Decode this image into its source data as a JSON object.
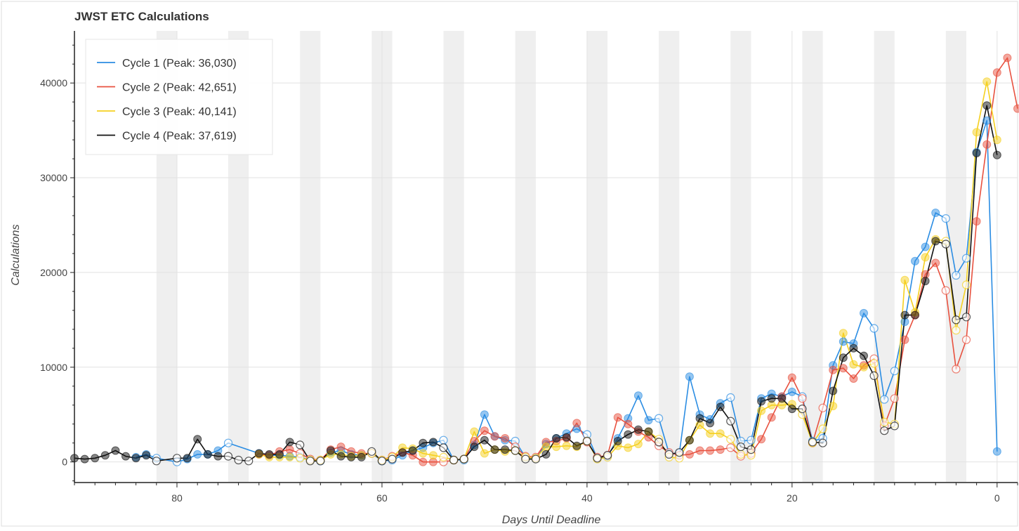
{
  "chart_data": {
    "type": "line",
    "title": "JWST ETC Calculations",
    "xlabel": "Days Until Deadline",
    "ylabel": "Calculations",
    "xlim": [
      90,
      -2
    ],
    "ylim": [
      -2100,
      45500
    ],
    "x_reversed": true,
    "x_ticks": [
      80,
      60,
      40,
      20,
      0
    ],
    "y_ticks": [
      0,
      10000,
      20000,
      30000,
      40000
    ],
    "grid": true,
    "legend_position": "top-left",
    "weekend_bands": [
      [
        82,
        80
      ],
      [
        75,
        73
      ],
      [
        68,
        66
      ],
      [
        61,
        59
      ],
      [
        54,
        52
      ],
      [
        47,
        45
      ],
      [
        40,
        38
      ],
      [
        33,
        31
      ],
      [
        26,
        24
      ],
      [
        19,
        17
      ],
      [
        12,
        10
      ],
      [
        5,
        3
      ]
    ],
    "series": [
      {
        "name": "Cycle 1 (Peak: 36,030)",
        "color": "#2b8de3",
        "points": [
          [
            84,
            500
          ],
          [
            83,
            800
          ],
          [
            82,
            400
          ],
          [
            80,
            0
          ],
          [
            79,
            300
          ],
          [
            78,
            800
          ],
          [
            77,
            800
          ],
          [
            76,
            1200
          ],
          [
            75,
            2000
          ],
          [
            72,
            900
          ],
          [
            71,
            700
          ],
          [
            70,
            700
          ],
          [
            69,
            600
          ],
          [
            68,
            500
          ],
          [
            67,
            200
          ],
          [
            66,
            100
          ],
          [
            65,
            1000
          ],
          [
            64,
            1200
          ],
          [
            63,
            800
          ],
          [
            62,
            700
          ],
          [
            61,
            900
          ],
          [
            60,
            100
          ],
          [
            59,
            200
          ],
          [
            58,
            700
          ],
          [
            57,
            1200
          ],
          [
            56,
            1500
          ],
          [
            55,
            2000
          ],
          [
            54,
            2300
          ],
          [
            53,
            200
          ],
          [
            52,
            200
          ],
          [
            51,
            1800
          ],
          [
            50,
            5000
          ],
          [
            49,
            2700
          ],
          [
            48,
            2300
          ],
          [
            47,
            2200
          ],
          [
            46,
            500
          ],
          [
            45,
            400
          ],
          [
            44,
            1900
          ],
          [
            43,
            2500
          ],
          [
            42,
            3000
          ],
          [
            41,
            3500
          ],
          [
            40,
            2900
          ],
          [
            39,
            400
          ],
          [
            38,
            600
          ],
          [
            37,
            2500
          ],
          [
            36,
            4600
          ],
          [
            35,
            7000
          ],
          [
            34,
            4400
          ],
          [
            33,
            4600
          ],
          [
            32,
            900
          ],
          [
            31,
            900
          ],
          [
            30,
            9000
          ],
          [
            29,
            5000
          ],
          [
            28,
            4500
          ],
          [
            27,
            6200
          ],
          [
            26,
            6800
          ],
          [
            25,
            2200
          ],
          [
            24,
            2300
          ],
          [
            23,
            6700
          ],
          [
            22,
            7200
          ],
          [
            21,
            6900
          ],
          [
            20,
            7400
          ],
          [
            19,
            6900
          ],
          [
            18,
            2200
          ],
          [
            17,
            2500
          ],
          [
            16,
            10200
          ],
          [
            15,
            12700
          ],
          [
            14,
            12500
          ],
          [
            13,
            15700
          ],
          [
            12,
            14100
          ],
          [
            11,
            6600
          ],
          [
            10,
            9600
          ],
          [
            9,
            14800
          ],
          [
            8,
            21200
          ],
          [
            7,
            22700
          ],
          [
            6,
            26300
          ],
          [
            5,
            25700
          ],
          [
            4,
            19700
          ],
          [
            3,
            21500
          ],
          [
            2,
            32700
          ],
          [
            1,
            36030
          ],
          [
            0,
            1100
          ]
        ]
      },
      {
        "name": "Cycle 2 (Peak: 42,651)",
        "color": "#e8513f",
        "points": [
          [
            72,
            800
          ],
          [
            71,
            700
          ],
          [
            70,
            1100
          ],
          [
            69,
            1300
          ],
          [
            68,
            900
          ],
          [
            67,
            300
          ],
          [
            66,
            200
          ],
          [
            65,
            1300
          ],
          [
            64,
            1600
          ],
          [
            63,
            1100
          ],
          [
            62,
            900
          ],
          [
            61,
            900
          ],
          [
            60,
            200
          ],
          [
            59,
            600
          ],
          [
            58,
            1000
          ],
          [
            57,
            700
          ],
          [
            56,
            0
          ],
          [
            55,
            0
          ],
          [
            54,
            0
          ],
          [
            53,
            200
          ],
          [
            52,
            300
          ],
          [
            51,
            2200
          ],
          [
            50,
            3300
          ],
          [
            49,
            2700
          ],
          [
            48,
            2500
          ],
          [
            47,
            1600
          ],
          [
            46,
            600
          ],
          [
            45,
            500
          ],
          [
            44,
            2100
          ],
          [
            43,
            2200
          ],
          [
            42,
            2500
          ],
          [
            41,
            4100
          ],
          [
            40,
            2100
          ],
          [
            39,
            500
          ],
          [
            38,
            700
          ],
          [
            37,
            4700
          ],
          [
            36,
            4000
          ],
          [
            35,
            3200
          ],
          [
            34,
            2600
          ],
          [
            33,
            1700
          ],
          [
            32,
            1000
          ],
          [
            31,
            700
          ],
          [
            30,
            800
          ],
          [
            29,
            1200
          ],
          [
            28,
            1200
          ],
          [
            27,
            1300
          ],
          [
            26,
            1500
          ],
          [
            25,
            600
          ],
          [
            24,
            900
          ],
          [
            23,
            2400
          ],
          [
            22,
            4700
          ],
          [
            21,
            6900
          ],
          [
            20,
            8900
          ],
          [
            19,
            6700
          ],
          [
            18,
            2000
          ],
          [
            17,
            5700
          ],
          [
            16,
            9700
          ],
          [
            15,
            9900
          ],
          [
            14,
            8800
          ],
          [
            13,
            10200
          ],
          [
            12,
            10900
          ],
          [
            11,
            3800
          ],
          [
            10,
            6700
          ],
          [
            9,
            12900
          ],
          [
            8,
            15500
          ],
          [
            7,
            19800
          ],
          [
            6,
            21000
          ],
          [
            5,
            18100
          ],
          [
            4,
            9800
          ],
          [
            3,
            12900
          ],
          [
            2,
            25400
          ],
          [
            1,
            33500
          ],
          [
            0,
            41100
          ],
          [
            -1,
            42651
          ],
          [
            -2,
            37300
          ]
        ]
      },
      {
        "name": "Cycle 3 (Peak: 40,141)",
        "color": "#f5d020",
        "points": [
          [
            72,
            800
          ],
          [
            71,
            500
          ],
          [
            70,
            500
          ],
          [
            69,
            500
          ],
          [
            68,
            400
          ],
          [
            67,
            200
          ],
          [
            66,
            200
          ],
          [
            65,
            800
          ],
          [
            64,
            800
          ],
          [
            63,
            600
          ],
          [
            62,
            700
          ],
          [
            61,
            900
          ],
          [
            60,
            200
          ],
          [
            59,
            500
          ],
          [
            58,
            1500
          ],
          [
            57,
            1400
          ],
          [
            56,
            900
          ],
          [
            55,
            700
          ],
          [
            54,
            500
          ],
          [
            53,
            200
          ],
          [
            52,
            300
          ],
          [
            51,
            3200
          ],
          [
            50,
            900
          ],
          [
            49,
            1300
          ],
          [
            48,
            1100
          ],
          [
            47,
            1200
          ],
          [
            46,
            500
          ],
          [
            45,
            400
          ],
          [
            44,
            1600
          ],
          [
            43,
            1600
          ],
          [
            42,
            1700
          ],
          [
            41,
            1600
          ],
          [
            40,
            2200
          ],
          [
            39,
            300
          ],
          [
            38,
            500
          ],
          [
            37,
            1700
          ],
          [
            36,
            1500
          ],
          [
            35,
            1900
          ],
          [
            34,
            3200
          ],
          [
            33,
            2400
          ],
          [
            32,
            500
          ],
          [
            31,
            400
          ],
          [
            30,
            2300
          ],
          [
            29,
            3900
          ],
          [
            28,
            3000
          ],
          [
            27,
            3000
          ],
          [
            26,
            2400
          ],
          [
            25,
            800
          ],
          [
            24,
            700
          ],
          [
            23,
            5400
          ],
          [
            22,
            6000
          ],
          [
            21,
            6000
          ],
          [
            20,
            6100
          ],
          [
            19,
            5000
          ],
          [
            18,
            2000
          ],
          [
            17,
            3500
          ],
          [
            16,
            5900
          ],
          [
            15,
            13600
          ],
          [
            14,
            10300
          ],
          [
            13,
            10000
          ],
          [
            12,
            10400
          ],
          [
            11,
            4200
          ],
          [
            10,
            4000
          ],
          [
            9,
            19200
          ],
          [
            8,
            15800
          ],
          [
            7,
            21600
          ],
          [
            6,
            23500
          ],
          [
            5,
            23300
          ],
          [
            4,
            13900
          ],
          [
            3,
            18700
          ],
          [
            2,
            34800
          ],
          [
            1,
            40141
          ],
          [
            0,
            34000
          ]
        ]
      },
      {
        "name": "Cycle 4 (Peak: 37,619)",
        "color": "#111111",
        "points": [
          [
            90,
            400
          ],
          [
            89,
            300
          ],
          [
            88,
            400
          ],
          [
            87,
            700
          ],
          [
            86,
            1200
          ],
          [
            85,
            600
          ],
          [
            84,
            400
          ],
          [
            83,
            700
          ],
          [
            82,
            100
          ],
          [
            80,
            400
          ],
          [
            79,
            400
          ],
          [
            78,
            2400
          ],
          [
            77,
            800
          ],
          [
            76,
            600
          ],
          [
            75,
            600
          ],
          [
            74,
            200
          ],
          [
            73,
            100
          ],
          [
            72,
            900
          ],
          [
            71,
            800
          ],
          [
            70,
            800
          ],
          [
            69,
            2100
          ],
          [
            68,
            1800
          ],
          [
            67,
            100
          ],
          [
            66,
            100
          ],
          [
            65,
            1200
          ],
          [
            64,
            600
          ],
          [
            63,
            500
          ],
          [
            62,
            500
          ],
          [
            61,
            1100
          ],
          [
            60,
            100
          ],
          [
            59,
            300
          ],
          [
            58,
            1000
          ],
          [
            57,
            1200
          ],
          [
            56,
            2000
          ],
          [
            55,
            2100
          ],
          [
            54,
            1500
          ],
          [
            53,
            200
          ],
          [
            52,
            300
          ],
          [
            51,
            1600
          ],
          [
            50,
            2300
          ],
          [
            49,
            1300
          ],
          [
            48,
            1300
          ],
          [
            47,
            1200
          ],
          [
            46,
            300
          ],
          [
            45,
            300
          ],
          [
            44,
            800
          ],
          [
            43,
            2500
          ],
          [
            42,
            2600
          ],
          [
            41,
            1700
          ],
          [
            40,
            2200
          ],
          [
            39,
            400
          ],
          [
            38,
            700
          ],
          [
            37,
            2200
          ],
          [
            36,
            2900
          ],
          [
            35,
            3400
          ],
          [
            34,
            3200
          ],
          [
            33,
            2100
          ],
          [
            32,
            800
          ],
          [
            31,
            1000
          ],
          [
            30,
            2300
          ],
          [
            29,
            4600
          ],
          [
            28,
            4100
          ],
          [
            27,
            5800
          ],
          [
            26,
            4300
          ],
          [
            25,
            1600
          ],
          [
            24,
            1300
          ],
          [
            23,
            6400
          ],
          [
            22,
            6700
          ],
          [
            21,
            6700
          ],
          [
            20,
            5600
          ],
          [
            19,
            5600
          ],
          [
            18,
            2100
          ],
          [
            17,
            2000
          ],
          [
            16,
            7500
          ],
          [
            15,
            11000
          ],
          [
            14,
            12000
          ],
          [
            13,
            11200
          ],
          [
            12,
            9100
          ],
          [
            11,
            3300
          ],
          [
            10,
            3800
          ],
          [
            9,
            15500
          ],
          [
            8,
            15500
          ],
          [
            7,
            19100
          ],
          [
            6,
            23300
          ],
          [
            5,
            23000
          ],
          [
            4,
            15000
          ],
          [
            3,
            15300
          ],
          [
            2,
            32600
          ],
          [
            1,
            37619
          ],
          [
            0,
            32400
          ]
        ]
      }
    ]
  }
}
